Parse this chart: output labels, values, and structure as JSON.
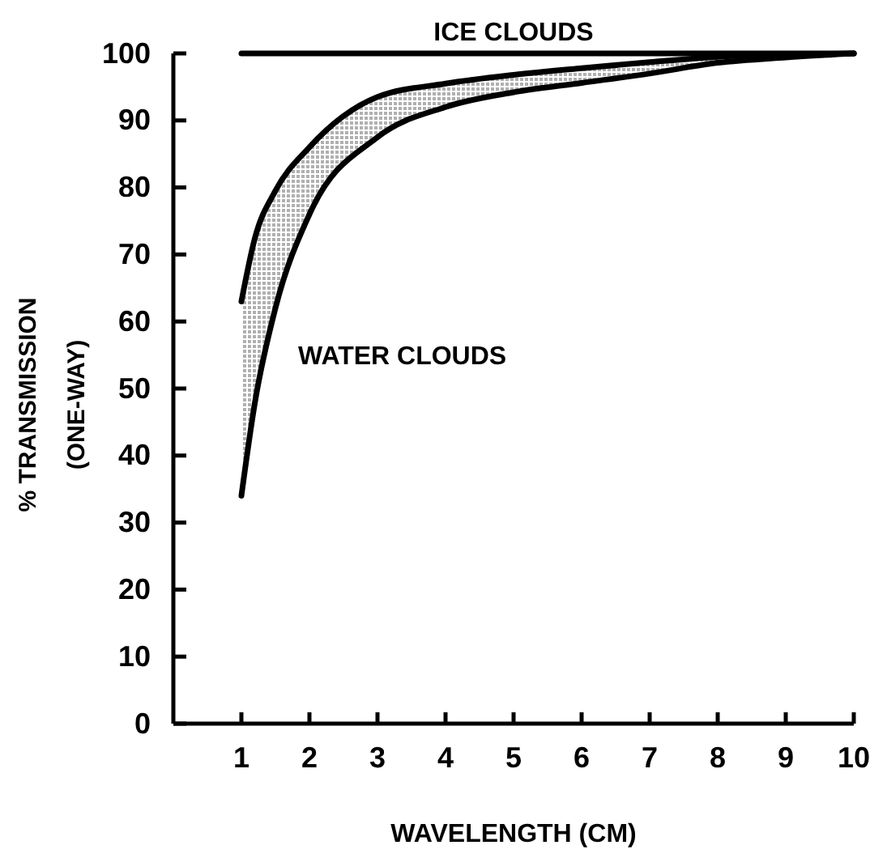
{
  "chart_data": {
    "type": "line",
    "xlabel": "WAVELENGTH (CM)",
    "ylabel": "% TRANSMISSION\n(ONE-WAY)",
    "xlim": [
      0,
      10
    ],
    "xticks": [
      1,
      2,
      3,
      4,
      5,
      6,
      7,
      8,
      9,
      10
    ],
    "ylim": [
      0,
      100
    ],
    "yticks": [
      0,
      10,
      20,
      30,
      40,
      50,
      60,
      70,
      80,
      90,
      100
    ],
    "grid": false,
    "series": [
      {
        "color": "#000000",
        "x": [
          1,
          10
        ],
        "values": [
          100,
          100
        ]
      },
      {
        "color": "#000000",
        "x": [
          1,
          1.2,
          1.5,
          2,
          3,
          4,
          5,
          6,
          7,
          8,
          9,
          10
        ],
        "values": [
          63,
          72.5,
          79.5,
          86,
          93.5,
          95.5,
          96.8,
          97.8,
          98.7,
          99.5,
          99.8,
          100
        ],
        "lower": [
          34,
          48,
          62,
          76,
          87.5,
          92,
          94.2,
          95.6,
          97,
          98.6,
          99.4,
          100
        ],
        "upper": [
          63,
          72.5,
          79.5,
          86,
          93.5,
          95.5,
          96.8,
          97.8,
          98.7,
          99.5,
          99.8,
          100
        ]
      },
      {
        "color": "#000000",
        "x": [
          1,
          1.2,
          1.5,
          2,
          3,
          4,
          5,
          6,
          7,
          8,
          9,
          10
        ],
        "values": [
          34,
          48,
          62,
          76,
          87.5,
          92,
          94.2,
          95.6,
          97,
          98.6,
          99.4,
          100
        ]
      }
    ],
    "annotations": [
      {
        "text": "ICE CLOUDS",
        "x": 5,
        "y": 100
      },
      "WATER CLOUDS"
    ]
  }
}
